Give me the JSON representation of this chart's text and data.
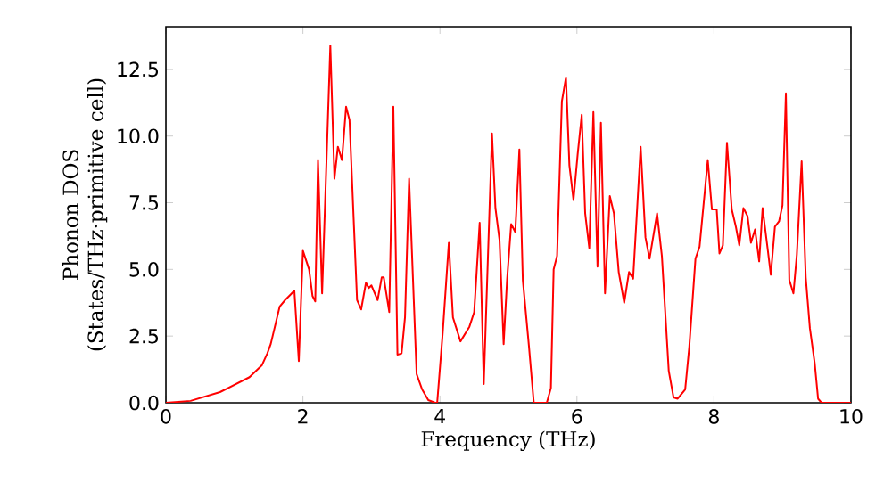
{
  "chart_data": {
    "type": "line",
    "xlabel": "Frequency (THz)",
    "ylabel": "Phonon DOS (States/THz·primitive cell)",
    "xlim": [
      0,
      10
    ],
    "ylim": [
      0,
      14.1
    ],
    "xticks": [
      0,
      2,
      4,
      6,
      8,
      10
    ],
    "yticks": [
      {
        "value": 0,
        "label": "0.0"
      },
      {
        "value": 2.5,
        "label": "2.5"
      },
      {
        "value": 5,
        "label": "5.0"
      },
      {
        "value": 7.5,
        "label": "7.5"
      },
      {
        "value": 10,
        "label": "10.0"
      },
      {
        "value": 12.5,
        "label": "12.5"
      }
    ],
    "grid": false,
    "marker": "none",
    "line_style": "solid",
    "series": [
      {
        "color": "#ff0000",
        "x": [
          0,
          0.36,
          0.79,
          1.22,
          1.4,
          1.48,
          1.53,
          1.66,
          1.74,
          1.875,
          1.94,
          2.0,
          2.09,
          2.14,
          2.18,
          2.22,
          2.28,
          2.4,
          2.46,
          2.51,
          2.57,
          2.63,
          2.68,
          2.79,
          2.85,
          2.92,
          2.96,
          3.0,
          3.09,
          3.15,
          3.18,
          3.26,
          3.32,
          3.38,
          3.44,
          3.49,
          3.55,
          3.66,
          3.74,
          3.83,
          3.93,
          3.96,
          4.04,
          4.13,
          4.19,
          4.3,
          4.43,
          4.5,
          4.58,
          4.64,
          4.76,
          4.81,
          4.87,
          4.93,
          4.98,
          5.04,
          5.1,
          5.16,
          5.21,
          5.3,
          5.37,
          5.56,
          5.62,
          5.66,
          5.71,
          5.78,
          5.84,
          5.89,
          5.95,
          6.01,
          6.07,
          6.12,
          6.18,
          6.24,
          6.3,
          6.35,
          6.41,
          6.48,
          6.54,
          6.61,
          6.69,
          6.76,
          6.82,
          6.93,
          7.0,
          7.06,
          7.17,
          7.24,
          7.34,
          7.41,
          7.47,
          7.58,
          7.64,
          7.73,
          7.79,
          7.91,
          7.97,
          8.04,
          8.08,
          8.13,
          8.19,
          8.26,
          8.32,
          8.37,
          8.43,
          8.49,
          8.54,
          8.6,
          8.66,
          8.71,
          8.78,
          8.83,
          8.89,
          8.95,
          9.0,
          9.05,
          9.1,
          9.16,
          9.21,
          9.28,
          9.34,
          9.4,
          9.47,
          9.52,
          9.57,
          10
        ],
        "values": [
          0,
          0.07,
          0.4,
          0.96,
          1.4,
          1.85,
          2.2,
          3.6,
          3.85,
          4.2,
          1.56,
          5.7,
          5.0,
          4.0,
          3.8,
          9.1,
          4.1,
          13.4,
          8.4,
          9.6,
          9.1,
          11.1,
          10.6,
          3.85,
          3.5,
          4.5,
          4.3,
          4.4,
          3.85,
          4.7,
          4.7,
          3.4,
          11.1,
          1.8,
          1.85,
          3.2,
          8.4,
          1.07,
          0.5,
          0.1,
          0,
          0,
          2.6,
          6.0,
          3.2,
          2.3,
          2.85,
          3.4,
          6.75,
          0.7,
          10.1,
          7.3,
          6.1,
          2.2,
          4.6,
          6.7,
          6.4,
          9.5,
          4.6,
          2.1,
          0,
          0,
          0.55,
          5.0,
          5.5,
          11.3,
          12.2,
          8.9,
          7.6,
          9.3,
          10.8,
          7.1,
          5.8,
          10.9,
          5.1,
          10.5,
          4.1,
          7.75,
          7.1,
          4.9,
          3.75,
          4.9,
          4.65,
          9.6,
          6.2,
          5.4,
          7.1,
          5.5,
          1.2,
          0.2,
          0.15,
          0.5,
          2.1,
          5.4,
          5.85,
          9.1,
          7.25,
          7.25,
          5.6,
          5.9,
          9.75,
          7.25,
          6.6,
          5.9,
          7.3,
          7.0,
          6.0,
          6.5,
          5.3,
          7.3,
          5.85,
          4.8,
          6.6,
          6.8,
          7.4,
          11.6,
          4.6,
          4.1,
          5.55,
          9.05,
          4.7,
          2.8,
          1.5,
          0.15,
          0,
          0
        ]
      }
    ]
  }
}
